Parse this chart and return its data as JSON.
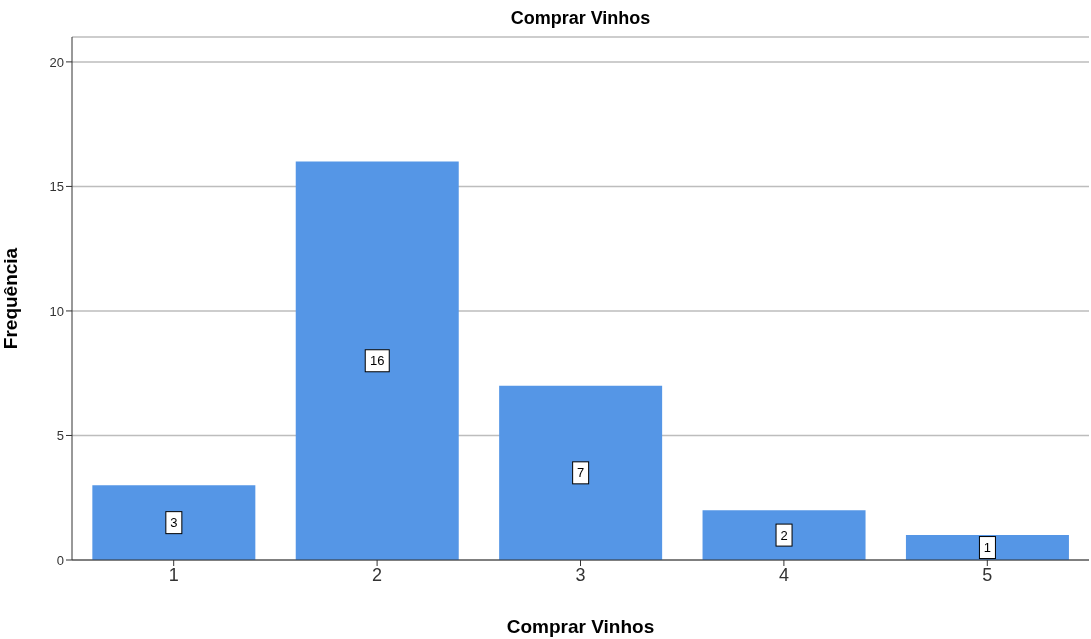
{
  "chart_data": {
    "type": "bar",
    "title": "Comprar Vinhos",
    "xlabel": "Comprar Vinhos",
    "ylabel": "Frequência",
    "categories": [
      "1",
      "2",
      "3",
      "4",
      "5"
    ],
    "values": [
      3,
      16,
      7,
      2,
      1
    ],
    "color": "#5596e6",
    "ylim": [
      0,
      21
    ],
    "yticks": [
      0,
      5,
      10,
      15,
      20
    ],
    "grid": "y",
    "data_labels": true
  }
}
